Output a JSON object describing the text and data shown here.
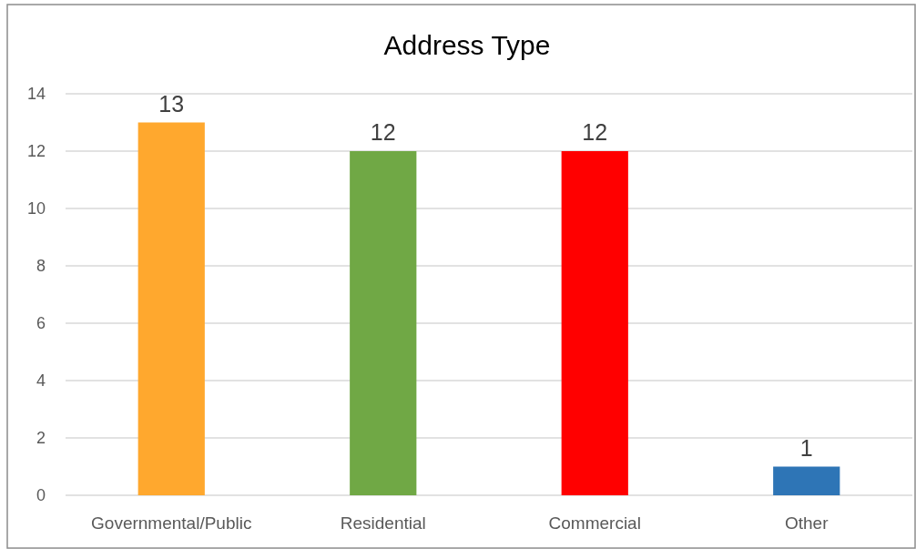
{
  "chart_data": {
    "type": "bar",
    "title": "Address Type",
    "categories": [
      "Governmental/Public",
      "Residential",
      "Commercial",
      "Other"
    ],
    "values": [
      13,
      12,
      12,
      1
    ],
    "colors": [
      "#ffa82e",
      "#70a845",
      "#ff0000",
      "#2e75b6"
    ],
    "ylim": [
      0,
      14
    ],
    "yticks": [
      0,
      2,
      4,
      6,
      8,
      10,
      12,
      14
    ],
    "grid": "y",
    "data_labels": true
  }
}
